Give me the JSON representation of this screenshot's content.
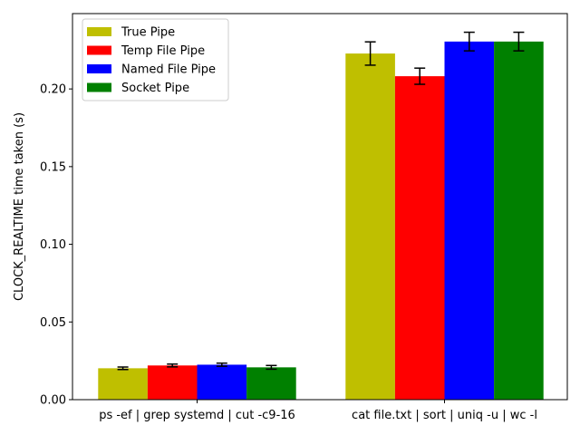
{
  "chart_data": {
    "type": "bar",
    "title": "",
    "xlabel": "",
    "ylabel": "CLOCK_REALTIME time taken (s)",
    "categories": [
      "ps -ef | grep systemd | cut -c9-16",
      "cat file.txt | sort | uniq -u | wc -l"
    ],
    "ylim": [
      0,
      0.2485
    ],
    "yticks": [
      0.0,
      0.05,
      0.1,
      0.15,
      0.2
    ],
    "ytick_labels": [
      "0.00",
      "0.05",
      "0.10",
      "0.15",
      "0.20"
    ],
    "grid": false,
    "legend_position": "top-left",
    "series": [
      {
        "name": "True Pipe",
        "color": "#bfbf00",
        "values": [
          0.0202,
          0.2228
        ],
        "errors": [
          0.0008,
          0.0075
        ]
      },
      {
        "name": "Temp File Pipe",
        "color": "#ff0000",
        "values": [
          0.022,
          0.2082
        ],
        "errors": [
          0.0009,
          0.0052
        ]
      },
      {
        "name": "Named File Pipe",
        "color": "#0000ff",
        "values": [
          0.0225,
          0.2305
        ],
        "errors": [
          0.001,
          0.006
        ]
      },
      {
        "name": "Socket Pipe",
        "color": "#008000",
        "values": [
          0.0208,
          0.2305
        ],
        "errors": [
          0.0012,
          0.006
        ]
      }
    ]
  }
}
